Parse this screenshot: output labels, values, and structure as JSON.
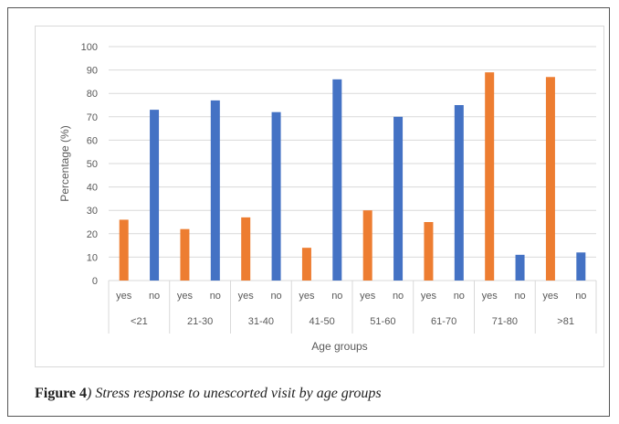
{
  "caption": {
    "label": "Figure 4",
    "text": ") Stress response to unescorted visit by age groups"
  },
  "colors": {
    "yes": "#ED7D31",
    "no": "#4472C4",
    "grid": "#d9d9d9",
    "text": "#595959"
  },
  "chart_data": {
    "type": "bar",
    "title": "",
    "xlabel": "Age groups",
    "ylabel": "Percentage (%)",
    "ylim": [
      0,
      100
    ],
    "yticks": [
      0,
      10,
      20,
      30,
      40,
      50,
      60,
      70,
      80,
      90,
      100
    ],
    "grid": true,
    "groups": [
      "<21",
      "21-30",
      "31-40",
      "41-50",
      "51-60",
      "61-70",
      "71-80",
      ">81"
    ],
    "subcategories": [
      "yes",
      "no"
    ],
    "series": [
      {
        "values": [
          26,
          22,
          27,
          14,
          30,
          25,
          89,
          87
        ]
      },
      {
        "values": [
          73,
          77,
          72,
          86,
          70,
          75,
          11,
          12
        ]
      }
    ]
  }
}
